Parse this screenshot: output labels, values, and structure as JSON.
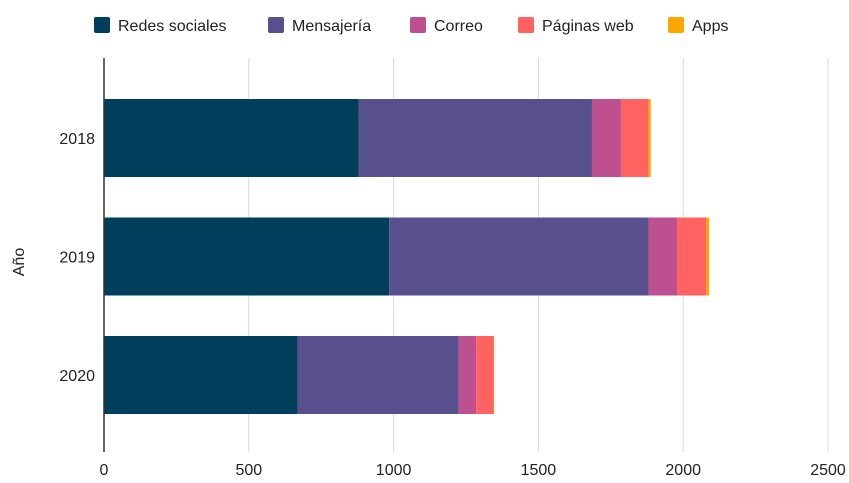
{
  "chart_data": {
    "type": "bar",
    "orientation": "horizontal",
    "stacked": true,
    "ylabel": "Año",
    "categories": [
      "2018",
      "2019",
      "2020"
    ],
    "series": [
      {
        "name": "Redes sociales",
        "color": "#003f5c",
        "values": [
          880,
          985,
          668
        ]
      },
      {
        "name": "Mensajería",
        "color": "#58508d",
        "values": [
          805,
          895,
          557
        ]
      },
      {
        "name": "Correo",
        "color": "#bc5090",
        "values": [
          100,
          100,
          60
        ]
      },
      {
        "name": "Páginas web",
        "color": "#ff6361",
        "values": [
          95,
          100,
          60
        ]
      },
      {
        "name": "Apps",
        "color": "#ffa600",
        "values": [
          8,
          10,
          2
        ]
      }
    ],
    "xlim": [
      0,
      2500
    ],
    "xticks": [
      0,
      500,
      1000,
      1500,
      2000,
      2500
    ],
    "grid": true,
    "legend_position": "top"
  }
}
